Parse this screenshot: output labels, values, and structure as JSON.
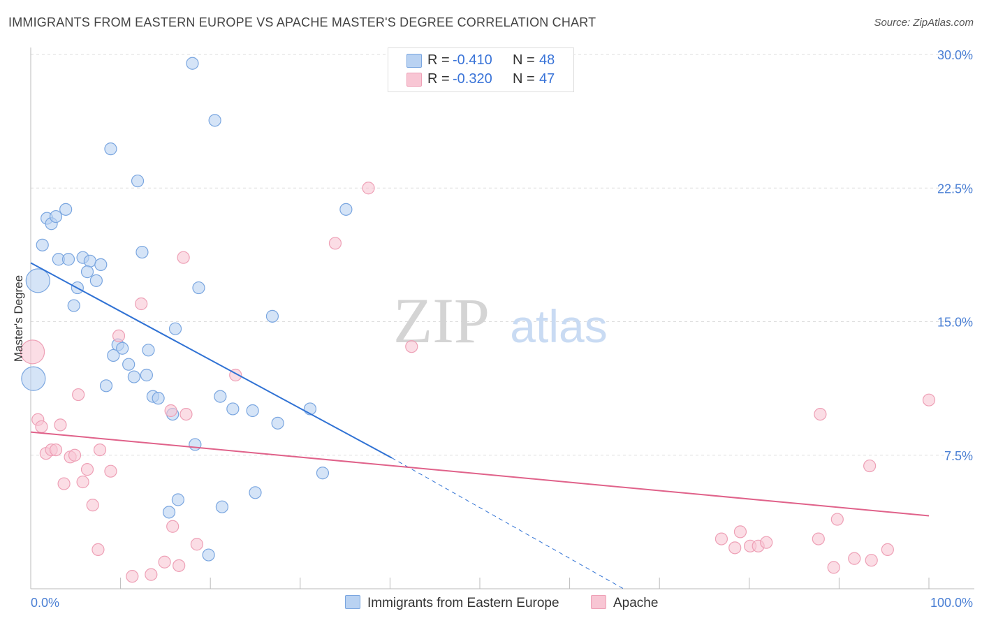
{
  "title": "IMMIGRANTS FROM EASTERN EUROPE VS APACHE MASTER'S DEGREE CORRELATION CHART",
  "source": "Source: ZipAtlas.com",
  "watermark": {
    "zip": "ZIP",
    "atlas": "atlas"
  },
  "legend_stats": {
    "r_label": "R =",
    "n_label": "N =",
    "blue": {
      "r": "-0.410",
      "n": "48"
    },
    "pink": {
      "r": "-0.320",
      "n": "47"
    }
  },
  "colors": {
    "blue_fill": "#b9d2f2",
    "blue_stroke": "#7aa6e0",
    "blue_line": "#3072d4",
    "pink_fill": "#f8c6d4",
    "pink_stroke": "#eea0b6",
    "pink_line": "#e0628a",
    "tick_text": "#4a7fd4",
    "grid": "#dddddd"
  },
  "chart_data": {
    "type": "scatter",
    "title": "IMMIGRANTS FROM EASTERN EUROPE VS APACHE MASTER'S DEGREE CORRELATION CHART",
    "xlabel": "",
    "ylabel": "Master's Degree",
    "xlim": [
      0,
      100
    ],
    "ylim": [
      0,
      30
    ],
    "x_tick_labels": [
      "0.0%",
      "100.0%"
    ],
    "y_ticks": [
      7.5,
      15.0,
      22.5,
      30.0
    ],
    "y_tick_labels": [
      "7.5%",
      "15.0%",
      "22.5%",
      "30.0%"
    ],
    "grid": true,
    "series": [
      {
        "name": "Immigrants from Eastern Europe",
        "color": "blue",
        "points": [
          {
            "x": 0.3,
            "y": 11.8,
            "big": true
          },
          {
            "x": 0.8,
            "y": 17.3,
            "big": true
          },
          {
            "x": 1.3,
            "y": 19.3
          },
          {
            "x": 1.8,
            "y": 20.8
          },
          {
            "x": 2.3,
            "y": 20.5
          },
          {
            "x": 2.8,
            "y": 20.9
          },
          {
            "x": 3.9,
            "y": 21.3
          },
          {
            "x": 3.1,
            "y": 18.5
          },
          {
            "x": 4.2,
            "y": 18.5
          },
          {
            "x": 5.8,
            "y": 18.6
          },
          {
            "x": 6.6,
            "y": 18.4
          },
          {
            "x": 7.8,
            "y": 18.2
          },
          {
            "x": 6.3,
            "y": 17.8
          },
          {
            "x": 7.3,
            "y": 17.3
          },
          {
            "x": 5.2,
            "y": 16.9
          },
          {
            "x": 4.8,
            "y": 15.9
          },
          {
            "x": 8.9,
            "y": 24.7
          },
          {
            "x": 11.9,
            "y": 22.9
          },
          {
            "x": 12.4,
            "y": 18.9
          },
          {
            "x": 18.0,
            "y": 29.5
          },
          {
            "x": 20.5,
            "y": 26.3
          },
          {
            "x": 18.7,
            "y": 16.9
          },
          {
            "x": 16.1,
            "y": 14.6
          },
          {
            "x": 9.7,
            "y": 13.7
          },
          {
            "x": 10.2,
            "y": 13.5
          },
          {
            "x": 13.1,
            "y": 13.4
          },
          {
            "x": 9.2,
            "y": 13.1
          },
          {
            "x": 10.9,
            "y": 12.6
          },
          {
            "x": 11.5,
            "y": 11.9
          },
          {
            "x": 12.9,
            "y": 12.0
          },
          {
            "x": 8.4,
            "y": 11.4
          },
          {
            "x": 13.6,
            "y": 10.8
          },
          {
            "x": 14.2,
            "y": 10.7
          },
          {
            "x": 15.8,
            "y": 9.8
          },
          {
            "x": 21.1,
            "y": 10.8
          },
          {
            "x": 22.5,
            "y": 10.1
          },
          {
            "x": 24.7,
            "y": 10.0
          },
          {
            "x": 27.5,
            "y": 9.3
          },
          {
            "x": 18.3,
            "y": 8.1
          },
          {
            "x": 26.9,
            "y": 15.3
          },
          {
            "x": 31.1,
            "y": 10.1
          },
          {
            "x": 35.1,
            "y": 21.3
          },
          {
            "x": 32.5,
            "y": 6.5
          },
          {
            "x": 16.4,
            "y": 5.0
          },
          {
            "x": 15.4,
            "y": 4.3
          },
          {
            "x": 21.3,
            "y": 4.6
          },
          {
            "x": 25.0,
            "y": 5.4
          },
          {
            "x": 19.8,
            "y": 1.9
          }
        ]
      },
      {
        "name": "Apache",
        "color": "pink",
        "points": [
          {
            "x": 0.2,
            "y": 13.3,
            "big": true
          },
          {
            "x": 0.8,
            "y": 9.5
          },
          {
            "x": 1.2,
            "y": 9.1
          },
          {
            "x": 3.3,
            "y": 9.2
          },
          {
            "x": 1.7,
            "y": 7.6
          },
          {
            "x": 2.3,
            "y": 7.8
          },
          {
            "x": 2.8,
            "y": 7.8
          },
          {
            "x": 4.4,
            "y": 7.4
          },
          {
            "x": 4.9,
            "y": 7.5
          },
          {
            "x": 7.7,
            "y": 7.8
          },
          {
            "x": 3.7,
            "y": 5.9
          },
          {
            "x": 5.8,
            "y": 6.0
          },
          {
            "x": 6.3,
            "y": 6.7
          },
          {
            "x": 8.9,
            "y": 6.6
          },
          {
            "x": 5.3,
            "y": 10.9
          },
          {
            "x": 6.9,
            "y": 4.7
          },
          {
            "x": 7.5,
            "y": 2.2
          },
          {
            "x": 9.8,
            "y": 14.2
          },
          {
            "x": 12.3,
            "y": 16.0
          },
          {
            "x": 17.0,
            "y": 18.6
          },
          {
            "x": 15.6,
            "y": 10.0
          },
          {
            "x": 17.3,
            "y": 9.8
          },
          {
            "x": 15.8,
            "y": 3.5
          },
          {
            "x": 18.5,
            "y": 2.5
          },
          {
            "x": 14.9,
            "y": 1.5
          },
          {
            "x": 16.5,
            "y": 1.3
          },
          {
            "x": 11.3,
            "y": 0.7
          },
          {
            "x": 13.4,
            "y": 0.8
          },
          {
            "x": 22.8,
            "y": 12.0
          },
          {
            "x": 33.9,
            "y": 19.4
          },
          {
            "x": 37.6,
            "y": 22.5
          },
          {
            "x": 42.4,
            "y": 13.6
          },
          {
            "x": 76.9,
            "y": 2.8
          },
          {
            "x": 78.4,
            "y": 2.3
          },
          {
            "x": 79.0,
            "y": 3.2
          },
          {
            "x": 80.1,
            "y": 2.4
          },
          {
            "x": 81.0,
            "y": 2.4
          },
          {
            "x": 81.9,
            "y": 2.6
          },
          {
            "x": 87.7,
            "y": 2.8
          },
          {
            "x": 89.4,
            "y": 1.2
          },
          {
            "x": 89.8,
            "y": 3.9
          },
          {
            "x": 91.7,
            "y": 1.7
          },
          {
            "x": 93.6,
            "y": 1.6
          },
          {
            "x": 95.4,
            "y": 2.2
          },
          {
            "x": 87.9,
            "y": 9.8
          },
          {
            "x": 93.4,
            "y": 6.9
          },
          {
            "x": 100.0,
            "y": 10.6
          }
        ]
      }
    ],
    "trend_lines": [
      {
        "series": "Immigrants from Eastern Europe",
        "x_start": 0,
        "y_start": 18.3,
        "x_end_solid": 40.2,
        "y_end_solid": 7.35,
        "x_end_dashed": 66.0,
        "y_end_dashed": 0.0
      },
      {
        "series": "Apache",
        "x_start": 0,
        "y_start": 8.8,
        "x_end": 100,
        "y_end": 4.1
      }
    ]
  }
}
